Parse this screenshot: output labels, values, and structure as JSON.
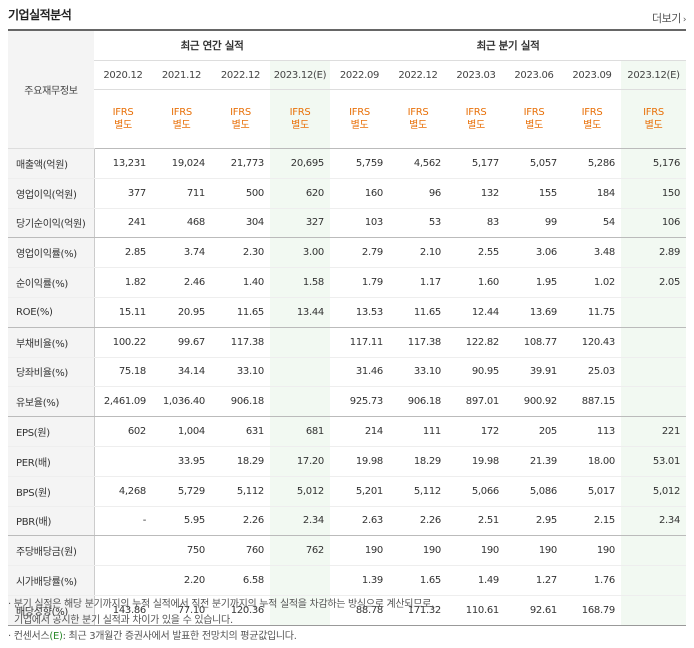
{
  "title": "기업실적분석",
  "more_label": "더보기",
  "label_header": "주요재무정보",
  "group_annual": "최근 연간 실적",
  "group_quarter": "최근 분기 실적",
  "annual_periods": [
    "2020.12",
    "2021.12",
    "2022.12",
    "2023.12(E)"
  ],
  "quarter_periods": [
    "2022.09",
    "2022.12",
    "2023.03",
    "2023.06",
    "2023.09",
    "2023.12(E)"
  ],
  "basis_line1": "IFRS",
  "basis_line2": "별도",
  "rows": [
    {
      "label": "매출액(억원)",
      "values": [
        "13,231",
        "19,024",
        "21,773",
        "20,695",
        "5,759",
        "4,562",
        "5,177",
        "5,057",
        "5,286",
        "5,176"
      ]
    },
    {
      "label": "영업이익(억원)",
      "values": [
        "377",
        "711",
        "500",
        "620",
        "160",
        "96",
        "132",
        "155",
        "184",
        "150"
      ]
    },
    {
      "label": "당기순이익(억원)",
      "values": [
        "241",
        "468",
        "304",
        "327",
        "103",
        "53",
        "83",
        "99",
        "54",
        "106"
      ]
    },
    {
      "label": "영업이익률(%)",
      "values": [
        "2.85",
        "3.74",
        "2.30",
        "3.00",
        "2.79",
        "2.10",
        "2.55",
        "3.06",
        "3.48",
        "2.89"
      ]
    },
    {
      "label": "순이익률(%)",
      "values": [
        "1.82",
        "2.46",
        "1.40",
        "1.58",
        "1.79",
        "1.17",
        "1.60",
        "1.95",
        "1.02",
        "2.05"
      ]
    },
    {
      "label": "ROE(%)",
      "values": [
        "15.11",
        "20.95",
        "11.65",
        "13.44",
        "13.53",
        "11.65",
        "12.44",
        "13.69",
        "11.75",
        ""
      ]
    },
    {
      "label": "부채비율(%)",
      "values": [
        "100.22",
        "99.67",
        "117.38",
        "",
        "117.11",
        "117.38",
        "122.82",
        "108.77",
        "120.43",
        ""
      ]
    },
    {
      "label": "당좌비율(%)",
      "values": [
        "75.18",
        "34.14",
        "33.10",
        "",
        "31.46",
        "33.10",
        "90.95",
        "39.91",
        "25.03",
        ""
      ]
    },
    {
      "label": "유보율(%)",
      "values": [
        "2,461.09",
        "1,036.40",
        "906.18",
        "",
        "925.73",
        "906.18",
        "897.01",
        "900.92",
        "887.15",
        ""
      ]
    },
    {
      "label": "EPS(원)",
      "values": [
        "602",
        "1,004",
        "631",
        "681",
        "214",
        "111",
        "172",
        "205",
        "113",
        "221"
      ]
    },
    {
      "label": "PER(배)",
      "values": [
        "",
        "33.95",
        "18.29",
        "17.20",
        "19.98",
        "18.29",
        "19.98",
        "21.39",
        "18.00",
        "53.01"
      ]
    },
    {
      "label": "BPS(원)",
      "values": [
        "4,268",
        "5,729",
        "5,112",
        "5,012",
        "5,201",
        "5,112",
        "5,066",
        "5,086",
        "5,017",
        "5,012"
      ]
    },
    {
      "label": "PBR(배)",
      "values": [
        "-",
        "5.95",
        "2.26",
        "2.34",
        "2.63",
        "2.26",
        "2.51",
        "2.95",
        "2.15",
        "2.34"
      ]
    },
    {
      "label": "주당배당금(원)",
      "values": [
        "",
        "750",
        "760",
        "762",
        "190",
        "190",
        "190",
        "190",
        "190",
        ""
      ]
    },
    {
      "label": "시가배당률(%)",
      "values": [
        "",
        "2.20",
        "6.58",
        "",
        "1.39",
        "1.65",
        "1.49",
        "1.27",
        "1.76",
        ""
      ]
    },
    {
      "label": "배당성향(%)",
      "values": [
        "143.86",
        "77.10",
        "120.36",
        "",
        "88.78",
        "171.32",
        "110.61",
        "92.61",
        "168.79",
        ""
      ]
    }
  ],
  "notes": {
    "line1": "· 분기 실적은 해당 분기까지의 누적 실적에서 직전 분기까지의 누적 실적을 차감하는 방식으로 계산되므로,",
    "line2": "기업에서 공시한 분기 실적과 차이가 있을 수 있습니다.",
    "line3_prefix": "· 컨센서스",
    "line3_e": "(E)",
    "line3_rest": ": 최근 3개월간 증권사에서 발표한 전망치의 평균값입니다."
  }
}
